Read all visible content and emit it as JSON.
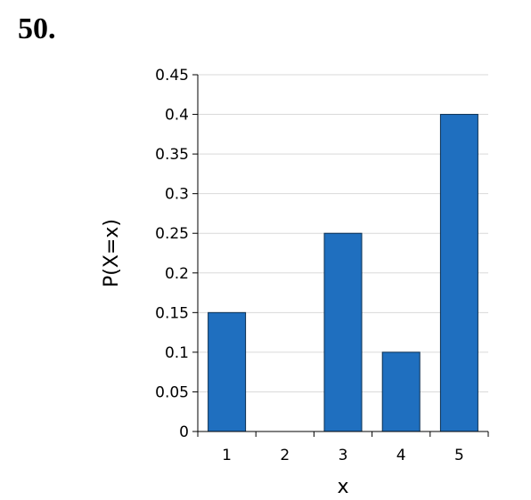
{
  "problem": {
    "number": "50."
  },
  "chart_data": {
    "type": "bar",
    "categories": [
      "1",
      "2",
      "3",
      "4",
      "5"
    ],
    "values": [
      0.15,
      0,
      0.25,
      0.1,
      0.4
    ],
    "xlabel": "x",
    "ylabel": "P(X=x)",
    "ylim": [
      0,
      0.45
    ],
    "yticks": [
      0,
      0.05,
      0.1,
      0.15,
      0.2,
      0.25,
      0.3,
      0.35,
      0.4,
      0.45
    ],
    "ytick_labels": [
      "0",
      "0.05",
      "0.1",
      "0.15",
      "0.2",
      "0.25",
      "0.3",
      "0.35",
      "0.4",
      "0.45"
    ],
    "grid": true,
    "legend": false,
    "colors": {
      "bar_fill": "#1f6fbf",
      "bar_stroke": "#0a2f52",
      "grid": "#d9d9d9",
      "axis": "#000000"
    }
  }
}
